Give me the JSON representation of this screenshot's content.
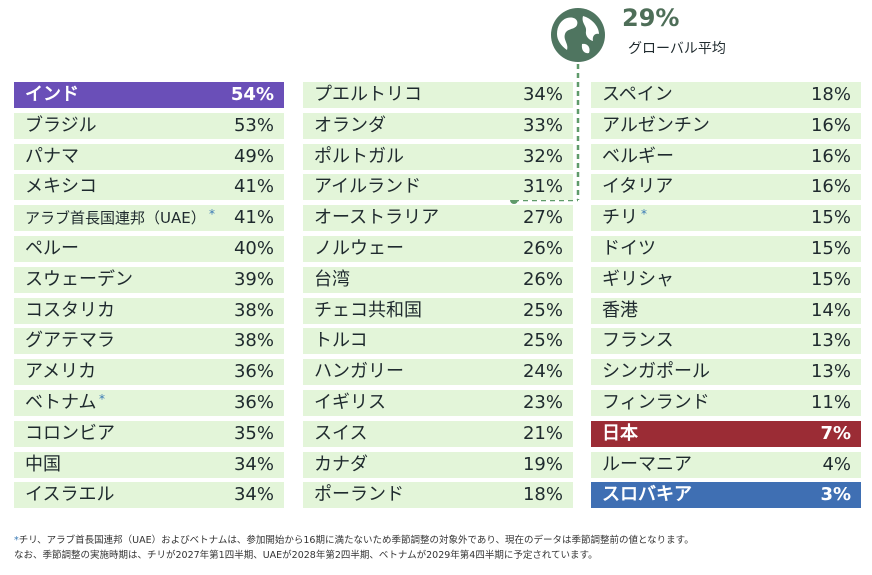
{
  "average": {
    "value": "29%",
    "label": "グローバル平均",
    "icon": "globe-icon"
  },
  "columns": [
    [
      {
        "name": "インド",
        "pct": "54%",
        "highlight": "#6a4fb8"
      },
      {
        "name": "ブラジル",
        "pct": "53%"
      },
      {
        "name": "パナマ",
        "pct": "49%"
      },
      {
        "name": "メキシコ",
        "pct": "41%"
      },
      {
        "name": "アラブ首長国連邦（UAE）",
        "pct": "41%",
        "star": "*",
        "small": true
      },
      {
        "name": "ペルー",
        "pct": "40%"
      },
      {
        "name": "スウェーデン",
        "pct": "39%"
      },
      {
        "name": "コスタリカ",
        "pct": "38%"
      },
      {
        "name": "グアテマラ",
        "pct": "38%"
      },
      {
        "name": "アメリカ",
        "pct": "36%"
      },
      {
        "name": "ベトナム",
        "pct": "36%",
        "star": "*"
      },
      {
        "name": "コロンビア",
        "pct": "35%"
      },
      {
        "name": "中国",
        "pct": "34%"
      },
      {
        "name": "イスラエル",
        "pct": "34%"
      }
    ],
    [
      {
        "name": "プエルトリコ",
        "pct": "34%"
      },
      {
        "name": "オランダ",
        "pct": "33%"
      },
      {
        "name": "ポルトガル",
        "pct": "32%"
      },
      {
        "name": "アイルランド",
        "pct": "31%"
      },
      {
        "name": "オーストラリア",
        "pct": "27%"
      },
      {
        "name": "ノルウェー",
        "pct": "26%"
      },
      {
        "name": "台湾",
        "pct": "26%"
      },
      {
        "name": "チェコ共和国",
        "pct": "25%"
      },
      {
        "name": "トルコ",
        "pct": "25%"
      },
      {
        "name": "ハンガリー",
        "pct": "24%"
      },
      {
        "name": "イギリス",
        "pct": "23%"
      },
      {
        "name": "スイス",
        "pct": "21%"
      },
      {
        "name": "カナダ",
        "pct": "19%"
      },
      {
        "name": "ポーランド",
        "pct": "18%"
      }
    ],
    [
      {
        "name": "スペイン",
        "pct": "18%"
      },
      {
        "name": "アルゼンチン",
        "pct": "16%"
      },
      {
        "name": "ベルギー",
        "pct": "16%"
      },
      {
        "name": "イタリア",
        "pct": "16%"
      },
      {
        "name": "チリ",
        "pct": "15%",
        "star": "*"
      },
      {
        "name": "ドイツ",
        "pct": "15%"
      },
      {
        "name": "ギリシャ",
        "pct": "15%"
      },
      {
        "name": "香港",
        "pct": "14%"
      },
      {
        "name": "フランス",
        "pct": "13%"
      },
      {
        "name": "シンガポール",
        "pct": "13%"
      },
      {
        "name": "フィンランド",
        "pct": "11%"
      },
      {
        "name": "日本",
        "pct": "7%",
        "highlight": "#9b2c35"
      },
      {
        "name": "ルーマニア",
        "pct": "4%"
      },
      {
        "name": "スロバキア",
        "pct": "3%",
        "highlight": "#3f6fb3"
      }
    ]
  ],
  "footnote": {
    "star": "*",
    "line1": "チリ、アラブ首長国連邦（UAE）およびベトナムは、参加開始から16期に満たないため季節調整の対象外であり、現在のデータは季節調整前の値となります。",
    "line2": "なお、季節調整の実施時期は、チリが2027年第1四半期、UAEが2028年第2四半期、ベトナムが2029年第4四半期に予定されています。"
  },
  "colors": {
    "row_bg": "#e3f5d9",
    "avg_text": "#4e6e58",
    "connector": "#5f9a6a",
    "star": "#3a7ab5"
  },
  "chart_data": {
    "type": "table",
    "title": "",
    "global_average": 29,
    "unit": "%",
    "rows": [
      {
        "country": "インド",
        "value": 54
      },
      {
        "country": "ブラジル",
        "value": 53
      },
      {
        "country": "パナマ",
        "value": 49
      },
      {
        "country": "メキシコ",
        "value": 41
      },
      {
        "country": "アラブ首長国連邦（UAE）",
        "value": 41
      },
      {
        "country": "ペルー",
        "value": 40
      },
      {
        "country": "スウェーデン",
        "value": 39
      },
      {
        "country": "コスタリカ",
        "value": 38
      },
      {
        "country": "グアテマラ",
        "value": 38
      },
      {
        "country": "アメリカ",
        "value": 36
      },
      {
        "country": "ベトナム",
        "value": 36
      },
      {
        "country": "コロンビア",
        "value": 35
      },
      {
        "country": "中国",
        "value": 34
      },
      {
        "country": "イスラエル",
        "value": 34
      },
      {
        "country": "プエルトリコ",
        "value": 34
      },
      {
        "country": "オランダ",
        "value": 33
      },
      {
        "country": "ポルトガル",
        "value": 32
      },
      {
        "country": "アイルランド",
        "value": 31
      },
      {
        "country": "オーストラリア",
        "value": 27
      },
      {
        "country": "ノルウェー",
        "value": 26
      },
      {
        "country": "台湾",
        "value": 26
      },
      {
        "country": "チェコ共和国",
        "value": 25
      },
      {
        "country": "トルコ",
        "value": 25
      },
      {
        "country": "ハンガリー",
        "value": 24
      },
      {
        "country": "イギリス",
        "value": 23
      },
      {
        "country": "スイス",
        "value": 21
      },
      {
        "country": "カナダ",
        "value": 19
      },
      {
        "country": "ポーランド",
        "value": 18
      },
      {
        "country": "スペイン",
        "value": 18
      },
      {
        "country": "アルゼンチン",
        "value": 16
      },
      {
        "country": "ベルギー",
        "value": 16
      },
      {
        "country": "イタリア",
        "value": 16
      },
      {
        "country": "チリ",
        "value": 15
      },
      {
        "country": "ドイツ",
        "value": 15
      },
      {
        "country": "ギリシャ",
        "value": 15
      },
      {
        "country": "香港",
        "value": 14
      },
      {
        "country": "フランス",
        "value": 13
      },
      {
        "country": "シンガポール",
        "value": 13
      },
      {
        "country": "フィンランド",
        "value": 11
      },
      {
        "country": "日本",
        "value": 7
      },
      {
        "country": "ルーマニア",
        "value": 4
      },
      {
        "country": "スロバキア",
        "value": 3
      }
    ]
  }
}
